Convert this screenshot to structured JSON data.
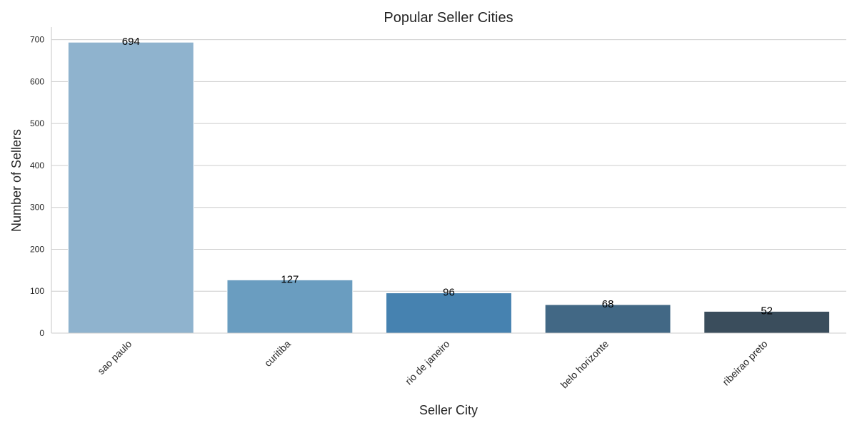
{
  "chart_data": {
    "type": "bar",
    "title": "Popular Seller Cities",
    "xlabel": "Seller City",
    "ylabel": "Number of Sellers",
    "categories": [
      "sao paulo",
      "curitiba",
      "rio de janeiro",
      "belo horizonte",
      "ribeirao preto"
    ],
    "values": [
      694,
      127,
      96,
      68,
      52
    ],
    "value_labels": [
      "694",
      "127",
      "96",
      "68",
      "52"
    ],
    "bar_colors": [
      "#8fb3ce",
      "#6a9dc0",
      "#4682b0",
      "#426885",
      "#3a4d5c"
    ],
    "ylim": [
      0,
      730
    ],
    "yticks": [
      0,
      100,
      200,
      300,
      400,
      500,
      600,
      700
    ],
    "ytick_labels": [
      "0",
      "100",
      "200",
      "300",
      "400",
      "500",
      "600",
      "700"
    ],
    "grid": "y",
    "legend": "none"
  }
}
